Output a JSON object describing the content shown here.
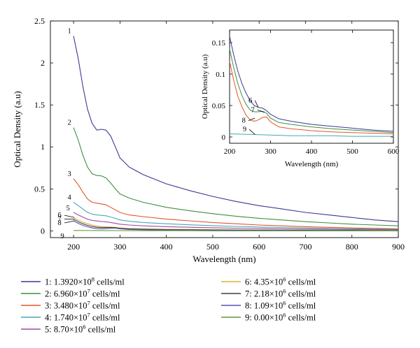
{
  "chart_data": [
    {
      "type": "line",
      "title": "",
      "xlabel": "Wavelength (nm)",
      "ylabel": "Optical Density (a.u)",
      "xlim": [
        150,
        900
      ],
      "ylim": [
        -0.08,
        2.5
      ],
      "xticks": [
        200,
        300,
        400,
        500,
        600,
        700,
        800,
        900
      ],
      "yticks": [
        0,
        0.5,
        1,
        1.5,
        2,
        2.5
      ],
      "xtick_labels": [
        "200",
        "300",
        "400",
        "500",
        "600",
        "700",
        "800",
        "900"
      ],
      "ytick_labels": [
        "0",
        "0.5",
        "1",
        "1.5",
        "2",
        "2.5"
      ],
      "grid": false,
      "legend_position": "bottom",
      "series": [
        {
          "name": "1: 1.3920×10⁸ cells/ml",
          "label": "1",
          "color": "#3a3a96",
          "x": [
            200,
            210,
            220,
            230,
            240,
            250,
            260,
            270,
            280,
            290,
            300,
            320,
            350,
            400,
            450,
            500,
            550,
            600,
            650,
            700,
            750,
            800,
            850,
            900
          ],
          "y": [
            2.32,
            2.05,
            1.72,
            1.45,
            1.28,
            1.2,
            1.21,
            1.2,
            1.13,
            1.0,
            0.87,
            0.76,
            0.67,
            0.56,
            0.48,
            0.41,
            0.35,
            0.3,
            0.26,
            0.22,
            0.19,
            0.16,
            0.13,
            0.11
          ]
        },
        {
          "name": "2: 6.960×10⁷ cells/ml",
          "label": "2",
          "color": "#3f8f3f",
          "x": [
            200,
            210,
            220,
            230,
            240,
            250,
            260,
            270,
            280,
            290,
            300,
            320,
            350,
            400,
            450,
            500,
            550,
            600,
            650,
            700,
            750,
            800,
            850,
            900
          ],
          "y": [
            1.23,
            1.08,
            0.9,
            0.76,
            0.68,
            0.66,
            0.655,
            0.63,
            0.57,
            0.5,
            0.44,
            0.39,
            0.34,
            0.28,
            0.24,
            0.205,
            0.175,
            0.15,
            0.13,
            0.11,
            0.095,
            0.08,
            0.07,
            0.06
          ]
        },
        {
          "name": "3: 3.480×10⁷ cells/ml",
          "label": "3",
          "color": "#e2552a",
          "x": [
            200,
            210,
            220,
            230,
            240,
            250,
            260,
            270,
            280,
            290,
            300,
            320,
            350,
            400,
            450,
            500,
            550,
            600,
            650,
            700,
            750,
            800,
            850,
            900
          ],
          "y": [
            0.62,
            0.55,
            0.46,
            0.38,
            0.34,
            0.33,
            0.32,
            0.31,
            0.28,
            0.25,
            0.22,
            0.19,
            0.17,
            0.14,
            0.12,
            0.1,
            0.085,
            0.07,
            0.06,
            0.05,
            0.042,
            0.035,
            0.03,
            0.025
          ]
        },
        {
          "name": "4: 1.740×10⁷ cells/ml",
          "label": "4",
          "color": "#46a9b8",
          "x": [
            200,
            210,
            220,
            230,
            240,
            250,
            260,
            270,
            280,
            290,
            300,
            320,
            350,
            400,
            450,
            500,
            550,
            600,
            650,
            700,
            750,
            800,
            850,
            900
          ],
          "y": [
            0.34,
            0.3,
            0.26,
            0.22,
            0.2,
            0.19,
            0.185,
            0.18,
            0.165,
            0.15,
            0.13,
            0.115,
            0.1,
            0.085,
            0.072,
            0.062,
            0.053,
            0.046,
            0.04,
            0.034,
            0.029,
            0.025,
            0.021,
            0.018
          ]
        },
        {
          "name": "5: 8.70×10⁶ cells/ml",
          "label": "5",
          "color": "#a04aa5",
          "x": [
            200,
            210,
            220,
            230,
            240,
            250,
            260,
            270,
            280,
            290,
            300,
            320,
            350,
            400,
            450,
            500,
            550,
            600,
            650,
            700,
            750,
            800,
            850,
            900
          ],
          "y": [
            0.22,
            0.19,
            0.165,
            0.14,
            0.125,
            0.118,
            0.112,
            0.108,
            0.1,
            0.09,
            0.08,
            0.07,
            0.06,
            0.05,
            0.043,
            0.037,
            0.032,
            0.028,
            0.024,
            0.021,
            0.018,
            0.016,
            0.014,
            0.012
          ]
        },
        {
          "name": "6: 4.35×10⁶ cells/ml",
          "label": "6",
          "color": "#d8b53a",
          "x": [
            200,
            210,
            220,
            230,
            240,
            250,
            260,
            270,
            280,
            290,
            300,
            320,
            350,
            400,
            450,
            500,
            550,
            600,
            650,
            700,
            750,
            800,
            850,
            900
          ],
          "y": [
            0.16,
            0.13,
            0.105,
            0.085,
            0.07,
            0.058,
            0.05,
            0.047,
            0.046,
            0.042,
            0.036,
            0.029,
            0.025,
            0.02,
            0.017,
            0.014,
            0.012,
            0.011,
            0.01,
            0.009,
            0.008,
            0.008,
            0.007,
            0.007
          ]
        },
        {
          "name": "7: 2.18×10⁶ cells/ml",
          "label": "7",
          "color": "#4a3c3c",
          "x": [
            200,
            210,
            220,
            230,
            240,
            250,
            260,
            270,
            280,
            290,
            300,
            320,
            350,
            400,
            450,
            500,
            550,
            600,
            650,
            700,
            750,
            800,
            850,
            900
          ],
          "y": [
            0.14,
            0.11,
            0.085,
            0.066,
            0.052,
            0.043,
            0.04,
            0.04,
            0.041,
            0.038,
            0.03,
            0.023,
            0.02,
            0.016,
            0.013,
            0.011,
            0.01,
            0.009,
            0.008,
            0.007,
            0.006,
            0.006,
            0.005,
            0.005
          ]
        },
        {
          "name": "8: 1.09×10⁶ cells/ml",
          "label": "8",
          "color": "#5b52b5",
          "x": [
            200,
            210,
            220,
            230,
            240,
            250,
            260,
            270,
            280,
            290,
            300,
            320,
            350,
            400,
            450,
            500,
            550,
            600,
            650,
            700,
            750,
            800,
            850,
            900
          ],
          "y": [
            0.12,
            0.09,
            0.065,
            0.048,
            0.035,
            0.027,
            0.025,
            0.027,
            0.031,
            0.032,
            0.024,
            0.016,
            0.013,
            0.01,
            0.008,
            0.007,
            0.006,
            0.005,
            0.005,
            0.004,
            0.004,
            0.004,
            0.003,
            0.003
          ]
        },
        {
          "name": "9: 0.00×10⁶ cells/ml",
          "label": "9",
          "color": "#5a9a3a",
          "x": [
            200,
            250,
            300,
            350,
            400,
            450,
            500,
            550,
            600,
            650,
            700,
            750,
            800,
            850,
            900
          ],
          "y": [
            0.005,
            0.004,
            0.003,
            0.002,
            0.002,
            0.002,
            0.001,
            0.001,
            0.001,
            0.001,
            0.001,
            0.001,
            0.001,
            0.001,
            0.001
          ]
        }
      ]
    },
    {
      "type": "line",
      "title": "",
      "xlabel": "Wavelength (nm)",
      "ylabel": "Optical Density (a.u)",
      "xlim": [
        200,
        600
      ],
      "ylim": [
        -0.01,
        0.17
      ],
      "xticks": [
        200,
        300,
        400,
        500,
        600
      ],
      "yticks": [
        0,
        0.05,
        0.1,
        0.15
      ],
      "xtick_labels": [
        "200",
        "300",
        "400",
        "500",
        "600"
      ],
      "ytick_labels": [
        "0",
        "0.05",
        "0.1",
        "0.15"
      ],
      "grid": false,
      "legend_position": "none",
      "series": [
        {
          "name": "",
          "label": "6",
          "color": "#3a3a96",
          "x": [
            200,
            210,
            220,
            230,
            240,
            250,
            260,
            270,
            280,
            290,
            300,
            320,
            350,
            400,
            450,
            500,
            550,
            600
          ],
          "y": [
            0.16,
            0.13,
            0.105,
            0.085,
            0.07,
            0.058,
            0.05,
            0.047,
            0.046,
            0.042,
            0.036,
            0.029,
            0.025,
            0.02,
            0.017,
            0.014,
            0.011,
            0.009
          ]
        },
        {
          "name": "",
          "label": "7",
          "color": "#3f8f3f",
          "x": [
            200,
            210,
            220,
            230,
            240,
            250,
            260,
            270,
            280,
            290,
            300,
            320,
            350,
            400,
            450,
            500,
            550,
            600
          ],
          "y": [
            0.14,
            0.11,
            0.085,
            0.066,
            0.052,
            0.043,
            0.04,
            0.04,
            0.041,
            0.038,
            0.03,
            0.023,
            0.02,
            0.016,
            0.013,
            0.011,
            0.009,
            0.007
          ]
        },
        {
          "name": "",
          "label": "8",
          "color": "#e2552a",
          "x": [
            200,
            210,
            220,
            230,
            240,
            250,
            260,
            270,
            280,
            290,
            300,
            320,
            350,
            400,
            450,
            500,
            550,
            600
          ],
          "y": [
            0.12,
            0.09,
            0.065,
            0.048,
            0.035,
            0.027,
            0.025,
            0.027,
            0.031,
            0.032,
            0.024,
            0.016,
            0.013,
            0.01,
            0.008,
            0.007,
            0.006,
            0.005
          ]
        },
        {
          "name": "",
          "label": "9",
          "color": "#46a9b8",
          "x": [
            200,
            250,
            300,
            350,
            400,
            450,
            500,
            550,
            600
          ],
          "y": [
            0.005,
            0.004,
            0.003,
            0.002,
            0.002,
            0.002,
            0.001,
            0.001,
            0.001
          ]
        }
      ]
    }
  ]
}
